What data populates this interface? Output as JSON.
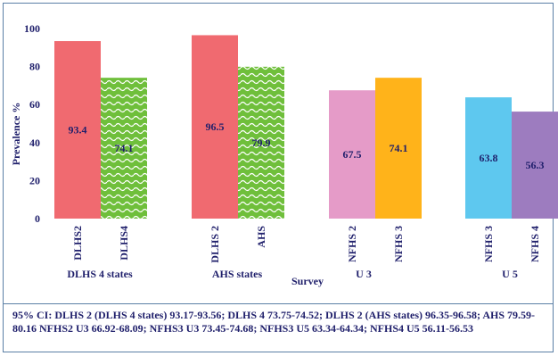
{
  "chart_data": {
    "type": "bar",
    "title": "",
    "xlabel": "Survey",
    "ylabel": "Prevalence %",
    "ylim": [
      0,
      100
    ],
    "yticks": [
      0,
      20,
      40,
      60,
      80,
      100
    ],
    "grid": false,
    "groups": [
      {
        "label": "DLHS 4 states",
        "bars": [
          {
            "category": "DLHS2",
            "value": 93.4,
            "value_label": "93.4",
            "color": "#f06a70",
            "pattern": "solid"
          },
          {
            "category": "DLHS4",
            "value": 74.1,
            "value_label": "74.1",
            "color": "#6fbf3b",
            "pattern": "wave"
          }
        ]
      },
      {
        "label": "AHS states",
        "bars": [
          {
            "category": "DLHS 2",
            "value": 96.5,
            "value_label": "96.5",
            "color": "#f06a70",
            "pattern": "solid"
          },
          {
            "category": "AHS",
            "value": 79.9,
            "value_label": "79.9",
            "color": "#6fbf3b",
            "pattern": "wave"
          }
        ]
      },
      {
        "label": "U 3",
        "bars": [
          {
            "category": "NFHS 2",
            "value": 67.5,
            "value_label": "67.5",
            "color": "#e59bc8",
            "pattern": "solid"
          },
          {
            "category": "NFHS 3",
            "value": 74.1,
            "value_label": "74.1",
            "color": "#ffb31a",
            "pattern": "solid"
          }
        ]
      },
      {
        "label": "U 5",
        "bars": [
          {
            "category": "NFHS 3",
            "value": 63.8,
            "value_label": "63.8",
            "color": "#5ec8ef",
            "pattern": "solid"
          },
          {
            "category": "NFHS 4",
            "value": 56.3,
            "value_label": "56.3",
            "color": "#9d7cbf",
            "pattern": "solid"
          }
        ]
      }
    ]
  },
  "ci_note": "95% CI: DLHS 2 (DLHS 4 states) 93.17-93.56; DLHS 4 73.75-74.52; DLHS 2 (AHS states) 96.35-96.58; AHS 79.59-80.16 NFHS2 U3 66.92-68.09; NFHS3 U3 73.45-74.68; NFHS3 U5 63.34-64.34; NFHS4 U5 56.11-56.53",
  "colors": {
    "text": "#1f1f6b",
    "frame": "#5b7fa6"
  }
}
